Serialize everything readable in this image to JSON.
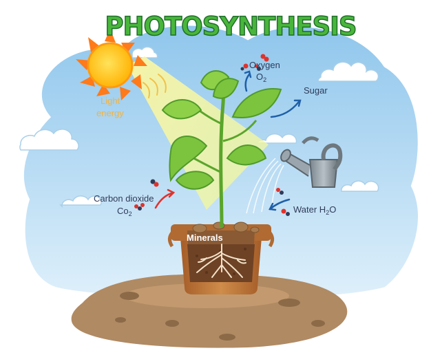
{
  "title": "PHOTOSYNTHESIS",
  "labels": {
    "light_line1": "Light",
    "light_line2": "energy",
    "oxygen": "Oxygen",
    "oxygen_formula": "O",
    "oxygen_sub": "2",
    "sugar": "Sugar",
    "co2_name": "Carbon dioxide",
    "co2_formula": "Co",
    "co2_sub": "2",
    "water": "Water H",
    "water_sub": "2",
    "water_tail": "O",
    "minerals": "Minerals"
  },
  "colors": {
    "sky": "#bfe0f5",
    "sky_border": "#ffffff",
    "sun": "#ffb000",
    "sun_rays": "#ff7a1a",
    "light_beam": "#f7f58a",
    "leaf": "#7cc43d",
    "leaf_dark": "#4f9a2a",
    "stem": "#5aa52b",
    "pot": "#c07a3e",
    "pot_rim": "#b06a32",
    "soil": "#7a4a2a",
    "roots": "#f3e2c8",
    "ground": "#b08a63",
    "title_fill": "#49b63b",
    "arrow_blue": "#1f5fa8",
    "arrow_red": "#e0322b",
    "can": "#8e9aa3",
    "cloud": "#ffffff",
    "text": "#2f3b59"
  },
  "icons": [
    "sun-icon",
    "watering-can-icon",
    "plant-icon",
    "pot-icon",
    "cloud-icon",
    "molecule-icon",
    "arrow-icon"
  ]
}
